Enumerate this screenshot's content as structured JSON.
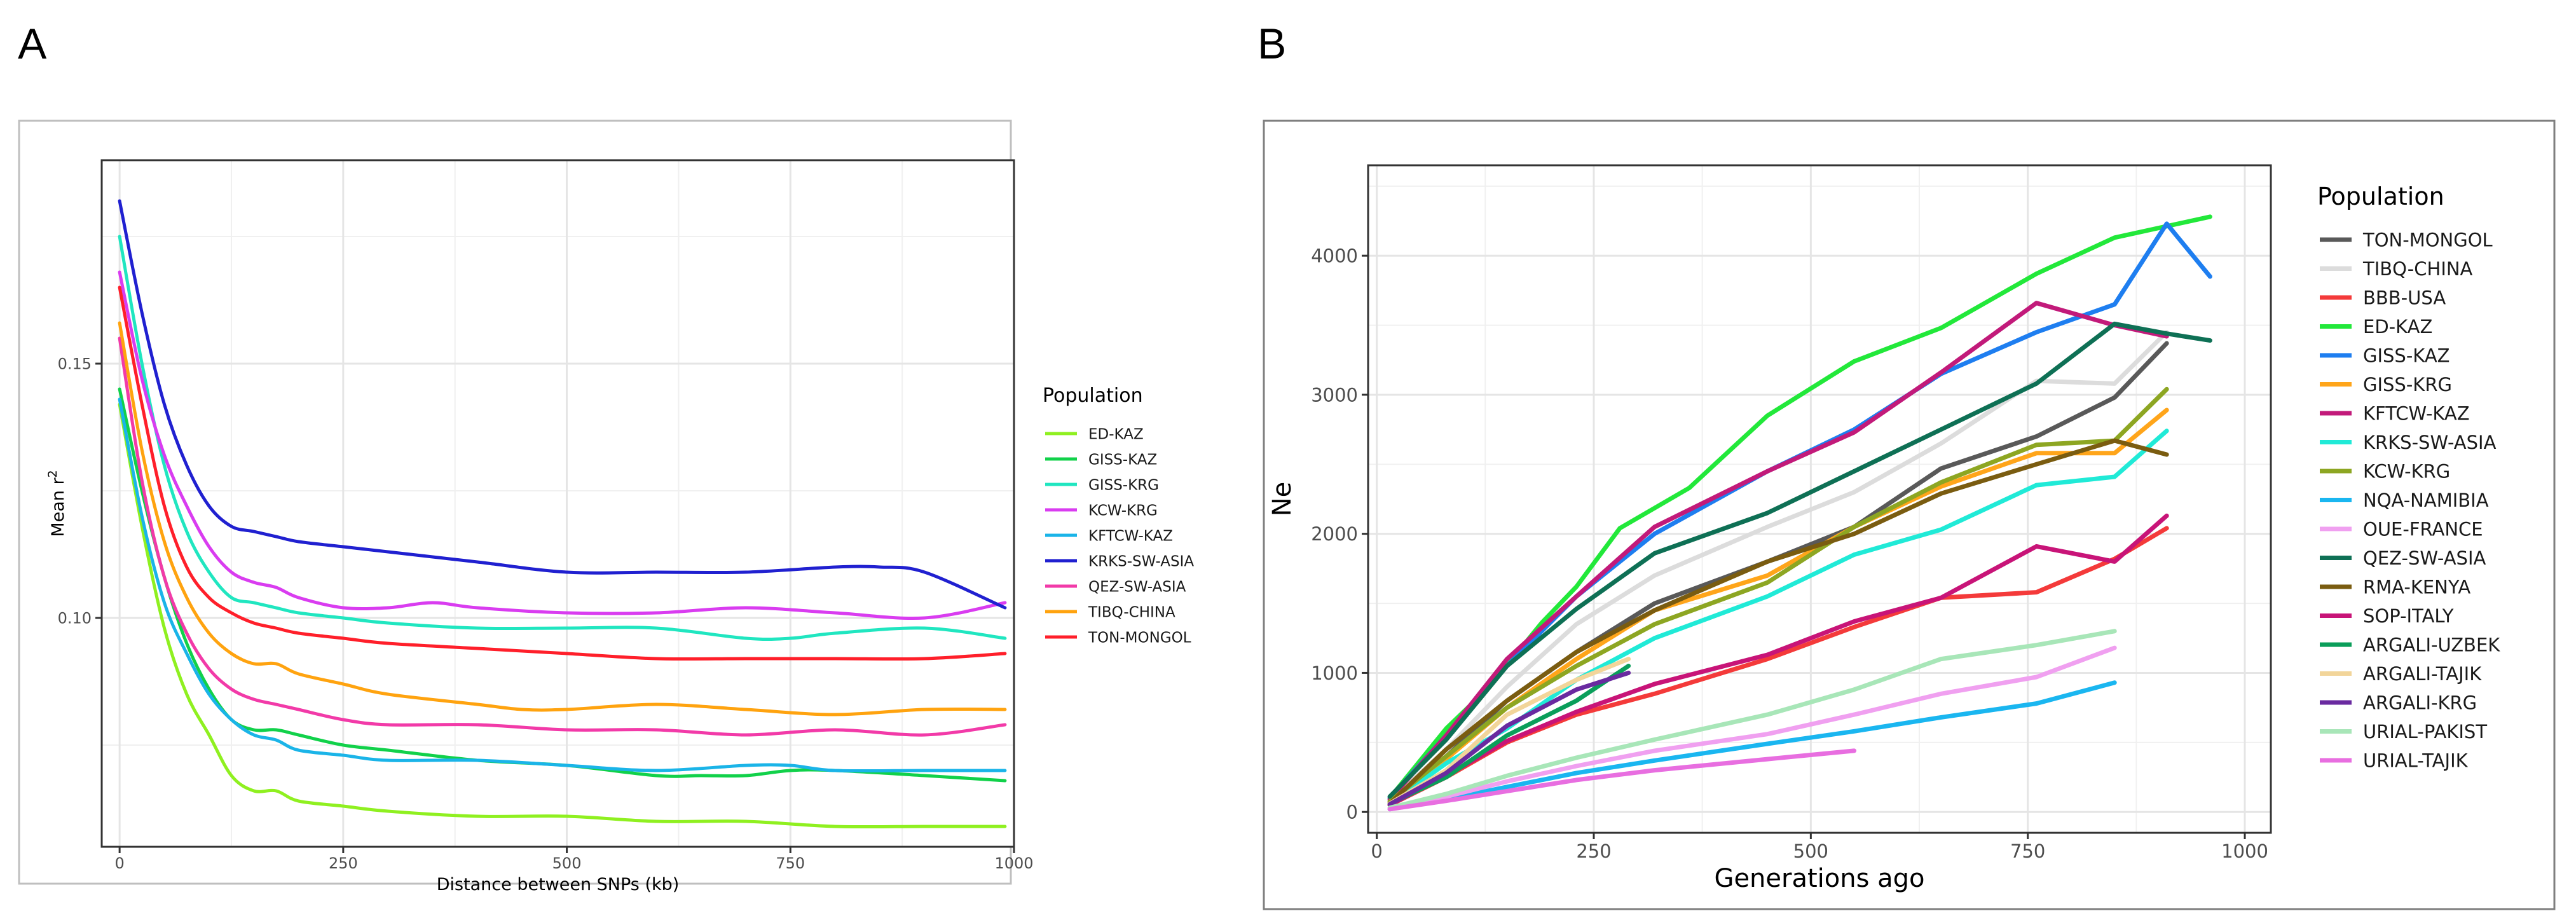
{
  "panels": [
    {
      "letter": "A"
    },
    {
      "letter": "B"
    }
  ],
  "chart_data": [
    {
      "type": "line",
      "xlabel": "Distance between SNPs (kb)",
      "ylabel": "Mean r",
      "ylabel_sup": "2",
      "xlim": [
        -20,
        1000
      ],
      "ylim": [
        0.055,
        0.19
      ],
      "xticks": [
        0,
        250,
        500,
        750,
        1000
      ],
      "xtick_labels": [
        "0",
        "250",
        "500",
        "750",
        "1000"
      ],
      "yticks": [
        0.1,
        0.15
      ],
      "ytick_labels": [
        "0.10",
        "0.15"
      ],
      "legend_title": "Population",
      "legend_position": "right",
      "series": [
        {
          "name": "ED-KAZ",
          "color": "#8ff020",
          "x": [
            0,
            25,
            50,
            75,
            100,
            125,
            150,
            175,
            200,
            250,
            300,
            400,
            500,
            600,
            700,
            800,
            900,
            990
          ],
          "y": [
            0.142,
            0.118,
            0.098,
            0.085,
            0.077,
            0.069,
            0.066,
            0.066,
            0.064,
            0.063,
            0.062,
            0.061,
            0.061,
            0.06,
            0.06,
            0.059,
            0.059,
            0.059
          ]
        },
        {
          "name": "GISS-KAZ",
          "color": "#11d14a",
          "x": [
            0,
            25,
            50,
            75,
            100,
            125,
            150,
            175,
            200,
            250,
            300,
            400,
            500,
            600,
            650,
            700,
            750,
            800,
            900,
            990
          ],
          "y": [
            0.145,
            0.125,
            0.108,
            0.095,
            0.086,
            0.08,
            0.078,
            0.078,
            0.077,
            0.075,
            0.074,
            0.072,
            0.071,
            0.069,
            0.069,
            0.069,
            0.07,
            0.07,
            0.069,
            0.068
          ]
        },
        {
          "name": "GISS-KRG",
          "color": "#20e6c0",
          "x": [
            0,
            25,
            50,
            75,
            100,
            125,
            150,
            175,
            200,
            250,
            300,
            400,
            500,
            600,
            700,
            750,
            800,
            900,
            990
          ],
          "y": [
            0.175,
            0.15,
            0.13,
            0.117,
            0.109,
            0.104,
            0.103,
            0.102,
            0.101,
            0.1,
            0.099,
            0.098,
            0.098,
            0.098,
            0.096,
            0.096,
            0.097,
            0.098,
            0.096
          ]
        },
        {
          "name": "KCW-KRG",
          "color": "#d93cf0",
          "x": [
            0,
            25,
            50,
            75,
            100,
            125,
            150,
            175,
            200,
            250,
            300,
            350,
            400,
            500,
            600,
            700,
            800,
            900,
            990
          ],
          "y": [
            0.168,
            0.147,
            0.132,
            0.122,
            0.114,
            0.109,
            0.107,
            0.106,
            0.104,
            0.102,
            0.102,
            0.103,
            0.102,
            0.101,
            0.101,
            0.102,
            0.101,
            0.1,
            0.103
          ]
        },
        {
          "name": "KFTCW-KAZ",
          "color": "#1ab4e8",
          "x": [
            0,
            25,
            50,
            75,
            100,
            125,
            150,
            175,
            200,
            250,
            300,
            400,
            500,
            600,
            700,
            750,
            800,
            900,
            990
          ],
          "y": [
            0.143,
            0.12,
            0.103,
            0.093,
            0.085,
            0.08,
            0.077,
            0.076,
            0.074,
            0.073,
            0.072,
            0.072,
            0.071,
            0.07,
            0.071,
            0.071,
            0.07,
            0.07,
            0.07
          ]
        },
        {
          "name": "KRKS-SW-ASIA",
          "color": "#2020d0",
          "x": [
            0,
            25,
            50,
            75,
            100,
            125,
            150,
            175,
            200,
            250,
            300,
            400,
            500,
            600,
            700,
            800,
            850,
            900,
            990
          ],
          "y": [
            0.182,
            0.16,
            0.142,
            0.13,
            0.122,
            0.118,
            0.117,
            0.116,
            0.115,
            0.114,
            0.113,
            0.111,
            0.109,
            0.109,
            0.109,
            0.11,
            0.11,
            0.109,
            0.102
          ]
        },
        {
          "name": "QEZ-SW-ASIA",
          "color": "#f23aa8",
          "x": [
            0,
            25,
            50,
            75,
            100,
            125,
            150,
            175,
            200,
            250,
            300,
            400,
            500,
            600,
            700,
            800,
            900,
            990
          ],
          "y": [
            0.155,
            0.127,
            0.108,
            0.097,
            0.09,
            0.086,
            0.084,
            0.083,
            0.082,
            0.08,
            0.079,
            0.079,
            0.078,
            0.078,
            0.077,
            0.078,
            0.077,
            0.079
          ]
        },
        {
          "name": "TIBQ-CHINA",
          "color": "#ffa30f",
          "x": [
            0,
            25,
            50,
            75,
            100,
            125,
            150,
            175,
            200,
            250,
            300,
            400,
            450,
            500,
            600,
            700,
            800,
            900,
            990
          ],
          "y": [
            0.158,
            0.133,
            0.115,
            0.104,
            0.097,
            0.093,
            0.091,
            0.091,
            0.089,
            0.087,
            0.085,
            0.083,
            0.082,
            0.082,
            0.083,
            0.082,
            0.081,
            0.082,
            0.082
          ]
        },
        {
          "name": "TON-MONGOL",
          "color": "#ff1f2a",
          "x": [
            0,
            25,
            50,
            75,
            100,
            125,
            150,
            175,
            200,
            250,
            300,
            400,
            500,
            600,
            700,
            800,
            900,
            990
          ],
          "y": [
            0.165,
            0.142,
            0.122,
            0.11,
            0.104,
            0.101,
            0.099,
            0.098,
            0.097,
            0.096,
            0.095,
            0.094,
            0.093,
            0.092,
            0.092,
            0.092,
            0.092,
            0.093
          ]
        }
      ]
    },
    {
      "type": "line",
      "xlabel": "Generations ago",
      "ylabel": "Ne",
      "xlim": [
        -10,
        1030
      ],
      "ylim": [
        -150,
        4650
      ],
      "xticks": [
        0,
        250,
        500,
        750,
        1000
      ],
      "xtick_labels": [
        "0",
        "250",
        "500",
        "750",
        "1000"
      ],
      "yticks": [
        0,
        1000,
        2000,
        3000,
        4000
      ],
      "ytick_labels": [
        "0",
        "1000",
        "2000",
        "3000",
        "4000"
      ],
      "legend_title": "Population",
      "legend_position": "right",
      "series": [
        {
          "name": "TON-MONGOL",
          "color": "#595959",
          "x": [
            15,
            80,
            150,
            230,
            320,
            450,
            550,
            650,
            760,
            850,
            910
          ],
          "y": [
            80,
            400,
            800,
            1150,
            1500,
            1800,
            2050,
            2470,
            2700,
            2980,
            3370
          ]
        },
        {
          "name": "TIBQ-CHINA",
          "color": "#dcdcdc",
          "x": [
            15,
            80,
            150,
            230,
            320,
            450,
            550,
            650,
            760,
            850,
            910
          ],
          "y": [
            80,
            450,
            900,
            1350,
            1700,
            2050,
            2300,
            2650,
            3100,
            3080,
            3450
          ]
        },
        {
          "name": "BBB-USA",
          "color": "#f43a3a",
          "x": [
            15,
            80,
            150,
            230,
            320,
            450,
            550,
            650,
            760,
            850,
            910
          ],
          "y": [
            50,
            250,
            500,
            700,
            850,
            1100,
            1330,
            1540,
            1580,
            1820,
            2040
          ]
        },
        {
          "name": "ED-KAZ",
          "color": "#22e83a",
          "x": [
            15,
            80,
            130,
            190,
            230,
            280,
            360,
            450,
            550,
            650,
            760,
            850,
            960
          ],
          "y": [
            100,
            600,
            900,
            1360,
            1620,
            2040,
            2330,
            2850,
            3240,
            3480,
            3870,
            4130,
            4280
          ]
        },
        {
          "name": "GISS-KAZ",
          "color": "#1e7ef0",
          "x": [
            15,
            80,
            150,
            230,
            320,
            450,
            550,
            650,
            760,
            850,
            910,
            960
          ],
          "y": [
            100,
            550,
            1050,
            1550,
            2000,
            2450,
            2750,
            3150,
            3450,
            3650,
            4230,
            3850
          ]
        },
        {
          "name": "GISS-KRG",
          "color": "#ffa51a",
          "x": [
            15,
            80,
            150,
            230,
            320,
            450,
            550,
            650,
            760,
            850,
            910
          ],
          "y": [
            70,
            380,
            750,
            1100,
            1450,
            1700,
            2050,
            2340,
            2580,
            2580,
            2890
          ]
        },
        {
          "name": "KFTCW-KAZ",
          "color": "#c21a7a",
          "x": [
            15,
            80,
            150,
            230,
            320,
            450,
            550,
            650,
            760,
            850,
            910
          ],
          "y": [
            90,
            550,
            1100,
            1550,
            2050,
            2450,
            2730,
            3160,
            3660,
            3500,
            3420
          ]
        },
        {
          "name": "KRKS-SW-ASIA",
          "color": "#20ead7",
          "x": [
            15,
            80,
            150,
            230,
            320,
            450,
            550,
            650,
            760,
            850,
            910
          ],
          "y": [
            60,
            350,
            600,
            950,
            1250,
            1550,
            1850,
            2030,
            2350,
            2410,
            2740
          ]
        },
        {
          "name": "KCW-KRG",
          "color": "#8da622",
          "x": [
            15,
            80,
            150,
            230,
            320,
            450,
            550,
            650,
            760,
            850,
            910
          ],
          "y": [
            75,
            400,
            750,
            1050,
            1350,
            1650,
            2050,
            2370,
            2640,
            2670,
            3040
          ]
        },
        {
          "name": "NQA-NAMIBIA",
          "color": "#1ab6f0",
          "x": [
            15,
            80,
            150,
            230,
            320,
            450,
            550,
            650,
            760,
            850
          ],
          "y": [
            20,
            90,
            180,
            280,
            370,
            490,
            580,
            680,
            780,
            930
          ]
        },
        {
          "name": "OUE-FRANCE",
          "color": "#f0a0f0",
          "x": [
            15,
            80,
            150,
            230,
            320,
            450,
            550,
            650,
            760,
            850
          ],
          "y": [
            20,
            110,
            220,
            330,
            440,
            560,
            700,
            850,
            970,
            1180
          ]
        },
        {
          "name": "QEZ-SW-ASIA",
          "color": "#0e7055",
          "x": [
            15,
            80,
            150,
            230,
            320,
            450,
            550,
            650,
            760,
            850,
            910,
            960
          ],
          "y": [
            110,
            520,
            1050,
            1460,
            1860,
            2150,
            2450,
            2750,
            3080,
            3510,
            3440,
            3390
          ]
        },
        {
          "name": "RMA-KENYA",
          "color": "#7a5c10",
          "x": [
            15,
            80,
            150,
            230,
            320,
            450,
            550,
            650,
            760,
            850,
            910
          ],
          "y": [
            60,
            450,
            800,
            1150,
            1450,
            1800,
            2000,
            2290,
            2500,
            2670,
            2570
          ]
        },
        {
          "name": "SOP-ITALY",
          "color": "#c81478",
          "x": [
            15,
            80,
            150,
            230,
            320,
            450,
            550,
            650,
            760,
            850,
            910
          ],
          "y": [
            50,
            260,
            510,
            720,
            920,
            1130,
            1370,
            1540,
            1910,
            1800,
            2130
          ]
        },
        {
          "name": "ARGALI-UZBEK",
          "color": "#0a9e5a",
          "x": [
            15,
            80,
            150,
            230,
            290
          ],
          "y": [
            60,
            250,
            550,
            800,
            1050
          ]
        },
        {
          "name": "ARGALI-TAJIK",
          "color": "#f2d59a",
          "x": [
            15,
            80,
            150,
            230,
            290
          ],
          "y": [
            60,
            300,
            700,
            950,
            1100
          ]
        },
        {
          "name": "ARGALI-KRG",
          "color": "#6a2aa0",
          "x": [
            15,
            80,
            150,
            230,
            290
          ],
          "y": [
            55,
            280,
            620,
            880,
            1000
          ]
        },
        {
          "name": "URIAL-PAKIST",
          "color": "#a8e6b8",
          "x": [
            15,
            80,
            150,
            230,
            320,
            450,
            550,
            650,
            760,
            850
          ],
          "y": [
            30,
            130,
            260,
            390,
            520,
            700,
            880,
            1100,
            1200,
            1300
          ]
        },
        {
          "name": "URIAL-TAJIK",
          "color": "#e86ee0",
          "x": [
            15,
            80,
            150,
            230,
            320,
            450,
            550
          ],
          "y": [
            20,
            80,
            150,
            230,
            300,
            380,
            440
          ]
        }
      ]
    }
  ]
}
